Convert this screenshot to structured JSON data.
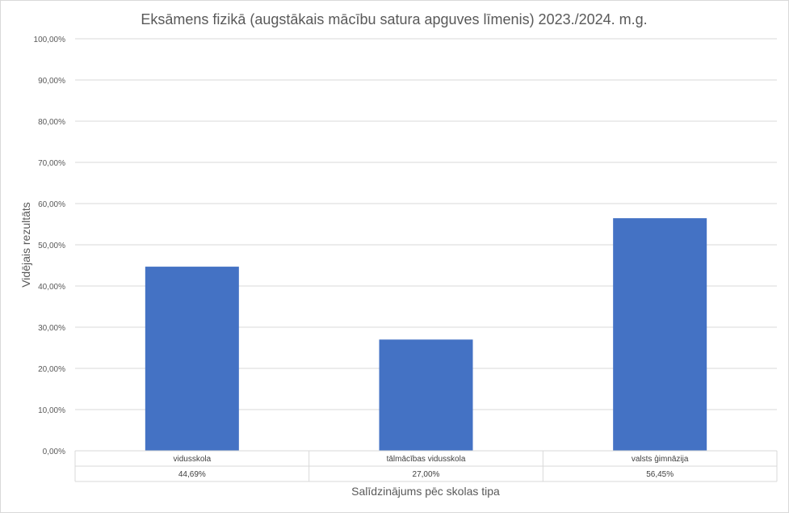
{
  "chart_data": {
    "type": "bar",
    "title": "Eksāmens fizikā (augstākais mācību satura apguves līmenis) 2023./2024. m.g.",
    "xlabel": "Salīdzinājums pēc skolas tipa",
    "ylabel": "Vidējais rezultāts",
    "categories": [
      "vidusskola",
      "tālmācības vidusskola",
      "valsts ģimnāzija"
    ],
    "values": [
      44.69,
      27.0,
      56.45
    ],
    "value_labels": [
      "44,69%",
      "27,00%",
      "56,45%"
    ],
    "ylim": [
      0,
      100
    ],
    "yticks": [
      0,
      10,
      20,
      30,
      40,
      50,
      60,
      70,
      80,
      90,
      100
    ],
    "ytick_labels": [
      "0,00%",
      "10,00%",
      "20,00%",
      "30,00%",
      "40,00%",
      "50,00%",
      "60,00%",
      "70,00%",
      "80,00%",
      "90,00%",
      "100,00%"
    ],
    "bar_color": "#4472C4",
    "grid": true,
    "legend": "none",
    "data_table": true
  }
}
